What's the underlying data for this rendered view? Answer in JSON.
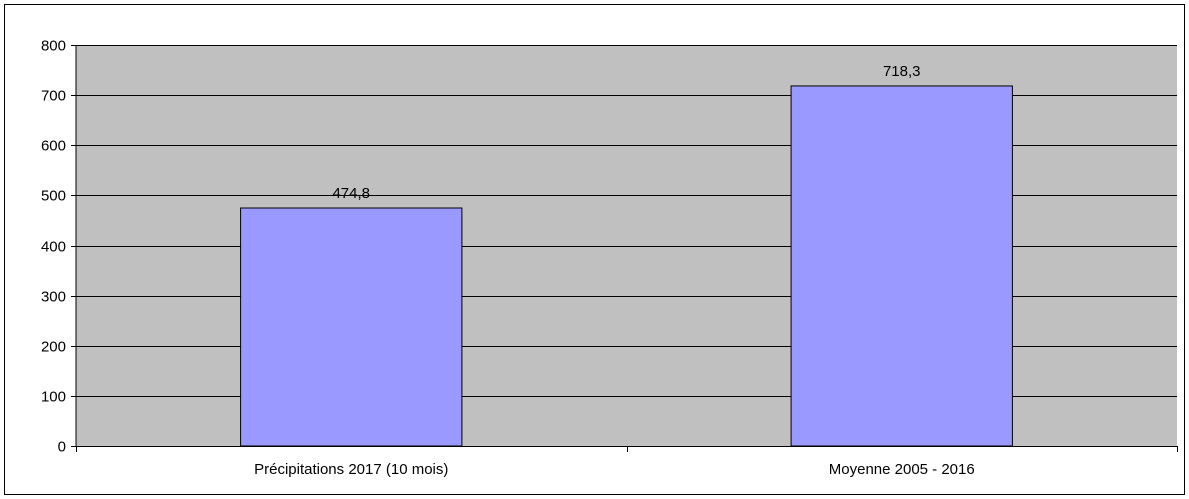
{
  "chart_data": {
    "type": "bar",
    "categories": [
      "Précipitations 2017 (10 mois)",
      "Moyenne 2005 - 2016"
    ],
    "values": [
      474.8,
      718.3
    ],
    "data_labels": [
      "474,8",
      "718,3"
    ],
    "title": "",
    "xlabel": "",
    "ylabel": "",
    "ylim": [
      0,
      800
    ],
    "yticks": [
      0,
      100,
      200,
      300,
      400,
      500,
      600,
      700,
      800
    ],
    "grid": true,
    "legend": "none"
  },
  "colors": {
    "plot_background": "#c0c0c0",
    "bar_fill": "#9999ff",
    "bar_stroke": "#000000",
    "gridline": "#000000"
  }
}
